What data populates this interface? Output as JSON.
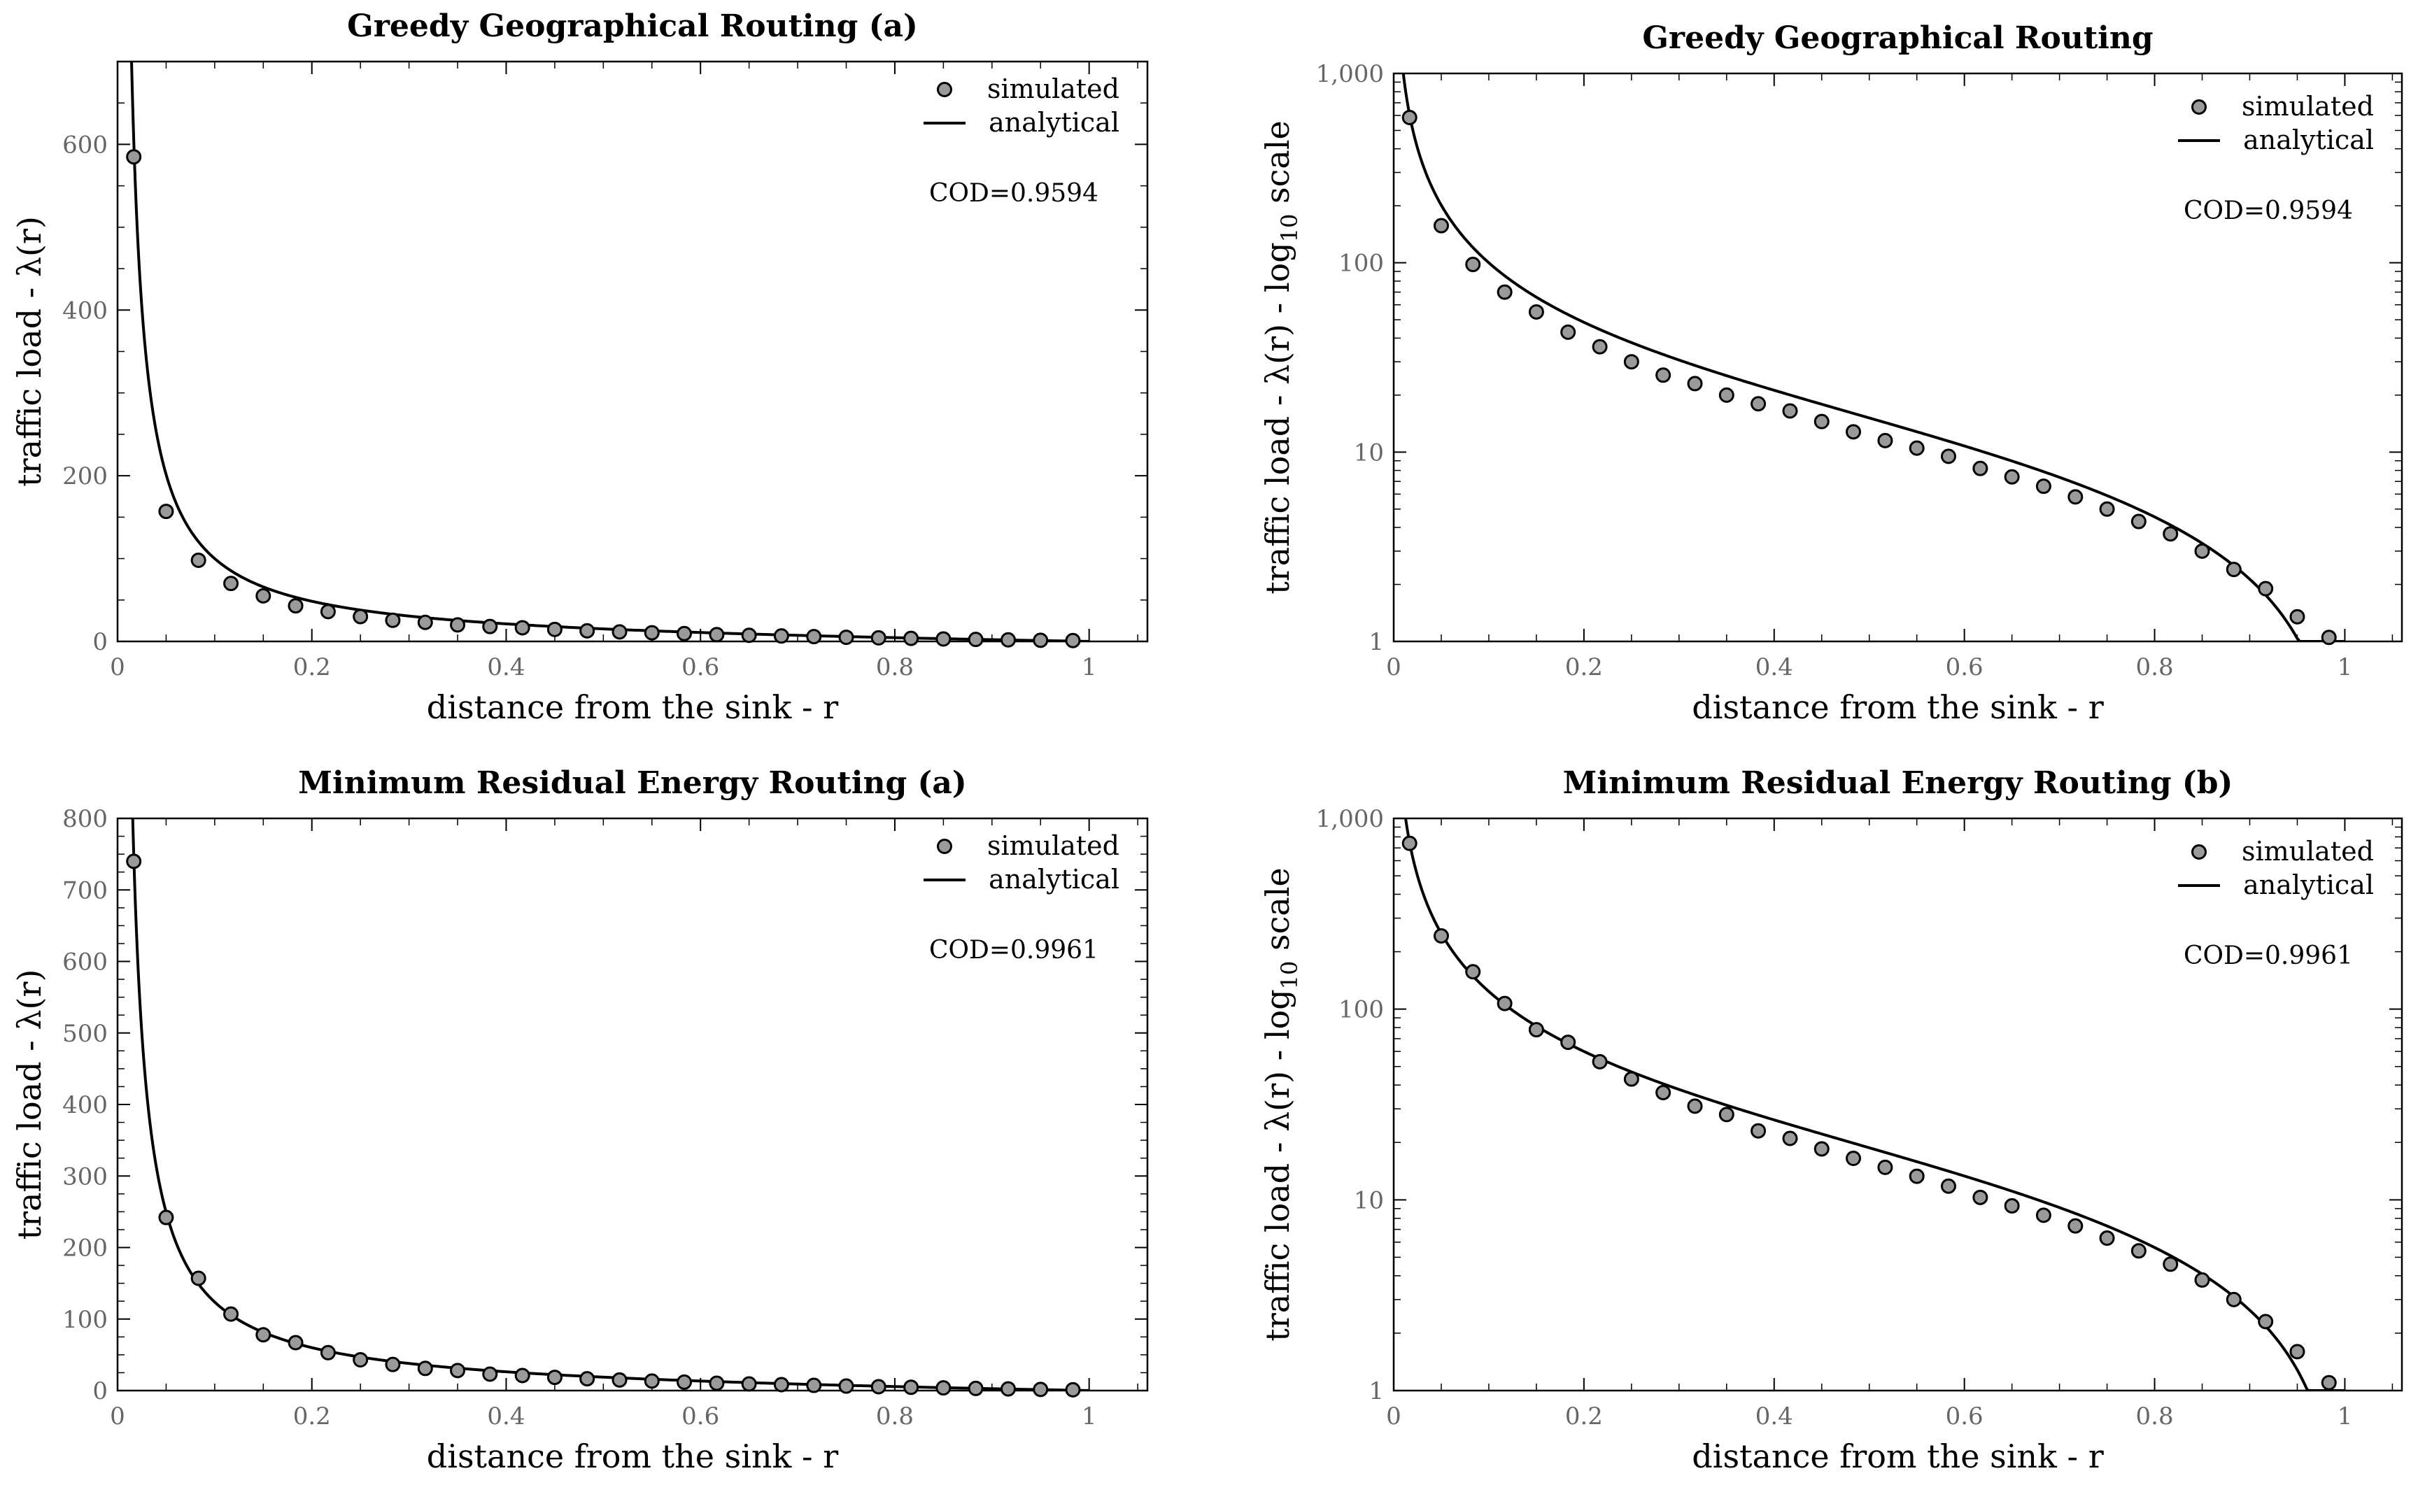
{
  "chart_data": [
    {
      "type": "scatter",
      "title": "Greedy Geographical Routing (a)",
      "xlabel": "distance from the sink - r",
      "ylabel": "traffic load - λ(r)",
      "yscale": "linear",
      "xlim": [
        0,
        1.06
      ],
      "ylim": [
        0,
        700
      ],
      "xticks": [
        0,
        0.2,
        0.4,
        0.6,
        0.8,
        1
      ],
      "xtick_labels": [
        "0",
        "0.2",
        "0.4",
        "0.6",
        "0.8",
        "1"
      ],
      "yticks": [
        0,
        200,
        400,
        600
      ],
      "ytick_labels": [
        "0",
        "200",
        "400",
        "600"
      ],
      "legend": [
        "simulated",
        "analytical"
      ],
      "legend_position": "top-right",
      "annotation": "COD=0.9594",
      "analytical_k": 10.1,
      "x": [
        0.0167,
        0.05,
        0.0833,
        0.1167,
        0.15,
        0.1833,
        0.2167,
        0.25,
        0.2833,
        0.3167,
        0.35,
        0.3833,
        0.4167,
        0.45,
        0.4833,
        0.5167,
        0.55,
        0.5833,
        0.6167,
        0.65,
        0.6833,
        0.7167,
        0.75,
        0.7833,
        0.8167,
        0.85,
        0.8833,
        0.9167,
        0.95,
        0.9833
      ],
      "series": [
        {
          "name": "simulated",
          "values": [
            585,
            157,
            98,
            70,
            55,
            43,
            36,
            30,
            25.5,
            23,
            20,
            18,
            16.5,
            14.5,
            12.8,
            11.5,
            10.5,
            9.5,
            8.2,
            7.4,
            6.6,
            5.8,
            5.0,
            4.3,
            3.7,
            3.0,
            2.4,
            1.9,
            1.35,
            1.05
          ]
        }
      ]
    },
    {
      "type": "scatter",
      "title": "Greedy Geographical Routing",
      "xlabel": "distance from the sink - r",
      "ylabel": "traffic load - λ(r) - log",
      "ylabel_sub": "10",
      "ylabel_tail": " scale",
      "yscale": "log",
      "xlim": [
        0,
        1.06
      ],
      "ylim": [
        1,
        1000
      ],
      "xticks": [
        0,
        0.2,
        0.4,
        0.6,
        0.8,
        1
      ],
      "xtick_labels": [
        "0",
        "0.2",
        "0.4",
        "0.6",
        "0.8",
        "1"
      ],
      "yticks": [
        1,
        10,
        100,
        1000
      ],
      "ytick_labels": [
        "1",
        "10",
        "100",
        "1,000"
      ],
      "legend": [
        "simulated",
        "analytical"
      ],
      "legend_position": "top-right",
      "annotation": "COD=0.9594",
      "analytical_k": 10.1,
      "x": [
        0.0167,
        0.05,
        0.0833,
        0.1167,
        0.15,
        0.1833,
        0.2167,
        0.25,
        0.2833,
        0.3167,
        0.35,
        0.3833,
        0.4167,
        0.45,
        0.4833,
        0.5167,
        0.55,
        0.5833,
        0.6167,
        0.65,
        0.6833,
        0.7167,
        0.75,
        0.7833,
        0.8167,
        0.85,
        0.8833,
        0.9167,
        0.95,
        0.9833
      ],
      "series": [
        {
          "name": "simulated",
          "values": [
            585,
            157,
            98,
            70,
            55,
            43,
            36,
            30,
            25.5,
            23,
            20,
            18,
            16.5,
            14.5,
            12.8,
            11.5,
            10.5,
            9.5,
            8.2,
            7.4,
            6.6,
            5.8,
            5.0,
            4.3,
            3.7,
            3.0,
            2.4,
            1.9,
            1.35,
            1.05
          ]
        }
      ]
    },
    {
      "type": "scatter",
      "title": "Minimum Residual Energy Routing (a)",
      "xlabel": "distance from the sink - r",
      "ylabel": "traffic load - λ(r)",
      "yscale": "linear",
      "xlim": [
        0,
        1.06
      ],
      "ylim": [
        0,
        800
      ],
      "xticks": [
        0,
        0.2,
        0.4,
        0.6,
        0.8,
        1
      ],
      "xtick_labels": [
        "0",
        "0.2",
        "0.4",
        "0.6",
        "0.8",
        "1"
      ],
      "yticks": [
        0,
        100,
        200,
        300,
        400,
        500,
        600,
        700,
        800
      ],
      "ytick_labels": [
        "0",
        "100",
        "200",
        "300",
        "400",
        "500",
        "600",
        "700",
        "800"
      ],
      "legend": [
        "simulated",
        "analytical"
      ],
      "legend_position": "top-right",
      "annotation": "COD=0.9961",
      "analytical_k": 12.5,
      "x": [
        0.0167,
        0.05,
        0.0833,
        0.1167,
        0.15,
        0.1833,
        0.2167,
        0.25,
        0.2833,
        0.3167,
        0.35,
        0.3833,
        0.4167,
        0.45,
        0.4833,
        0.5167,
        0.55,
        0.5833,
        0.6167,
        0.65,
        0.6833,
        0.7167,
        0.75,
        0.7833,
        0.8167,
        0.85,
        0.8833,
        0.9167,
        0.95,
        0.9833
      ],
      "series": [
        {
          "name": "simulated",
          "values": [
            740,
            242,
            157,
            107,
            78,
            67,
            53,
            43,
            36.5,
            31,
            28,
            23,
            21,
            18.5,
            16.5,
            14.8,
            13.3,
            11.8,
            10.3,
            9.3,
            8.3,
            7.3,
            6.3,
            5.4,
            4.6,
            3.8,
            3.0,
            2.3,
            1.6,
            1.1
          ]
        }
      ]
    },
    {
      "type": "scatter",
      "title": "Minimum Residual Energy Routing (b)",
      "xlabel": "distance from the sink - r",
      "ylabel": "traffic load - λ(r) - log",
      "ylabel_sub": "10",
      "ylabel_tail": " scale",
      "yscale": "log",
      "xlim": [
        0,
        1.06
      ],
      "ylim": [
        1,
        1000
      ],
      "xticks": [
        0,
        0.2,
        0.4,
        0.6,
        0.8,
        1
      ],
      "xtick_labels": [
        "0",
        "0.2",
        "0.4",
        "0.6",
        "0.8",
        "1"
      ],
      "yticks": [
        1,
        10,
        100,
        1000
      ],
      "ytick_labels": [
        "1",
        "10",
        "100",
        "1,000"
      ],
      "legend": [
        "simulated",
        "analytical"
      ],
      "legend_position": "top-right",
      "annotation": "COD=0.9961",
      "analytical_k": 12.5,
      "x": [
        0.0167,
        0.05,
        0.0833,
        0.1167,
        0.15,
        0.1833,
        0.2167,
        0.25,
        0.2833,
        0.3167,
        0.35,
        0.3833,
        0.4167,
        0.45,
        0.4833,
        0.5167,
        0.55,
        0.5833,
        0.6167,
        0.65,
        0.6833,
        0.7167,
        0.75,
        0.7833,
        0.8167,
        0.85,
        0.8833,
        0.9167,
        0.95,
        0.9833
      ],
      "series": [
        {
          "name": "simulated",
          "values": [
            740,
            242,
            157,
            107,
            78,
            67,
            53,
            43,
            36.5,
            31,
            28,
            23,
            21,
            18.5,
            16.5,
            14.8,
            13.3,
            11.8,
            10.3,
            9.3,
            8.3,
            7.3,
            6.3,
            5.4,
            4.6,
            3.8,
            3.0,
            2.3,
            1.6,
            1.1
          ]
        }
      ]
    }
  ]
}
